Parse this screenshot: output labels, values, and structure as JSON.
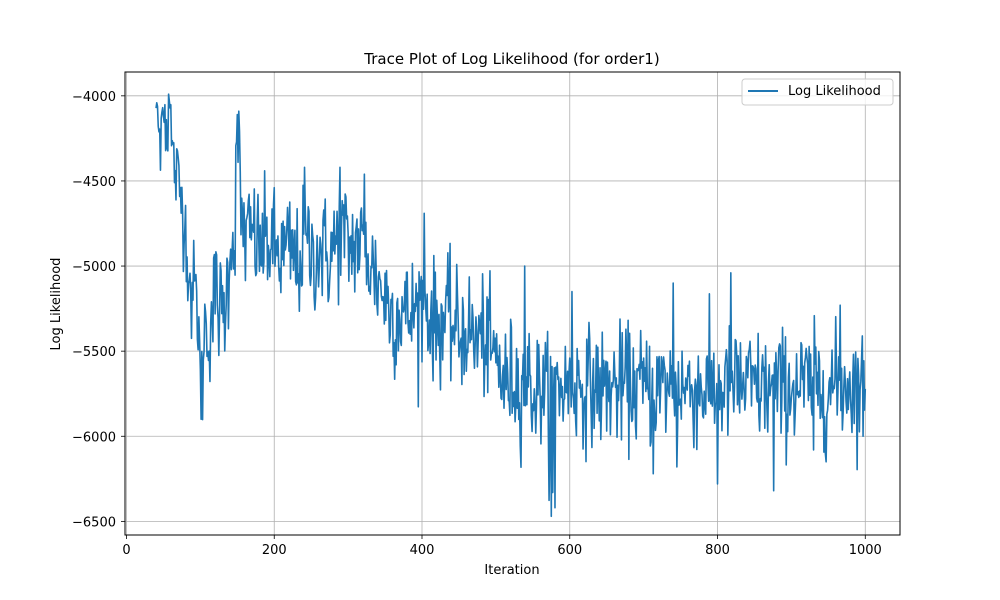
{
  "chart_data": {
    "type": "line",
    "title": "Trace Plot of Log Likelihood (for order1)",
    "xlabel": "Iteration",
    "ylabel": "Log Likelihood",
    "xlim": [
      -2,
      1047
    ],
    "ylim": [
      -6580,
      -3860
    ],
    "xticks": [
      0,
      200,
      400,
      600,
      800,
      1000
    ],
    "yticks": [
      -6500,
      -6000,
      -5500,
      -5000,
      -4500,
      -4000
    ],
    "xtick_labels": [
      "0",
      "200",
      "400",
      "600",
      "800",
      "1000"
    ],
    "ytick_labels": [
      "−6500",
      "−6000",
      "−5500",
      "−5000",
      "−4500",
      "−4000"
    ],
    "grid": true,
    "legend": {
      "position": "top-right"
    },
    "series": [
      {
        "name": "Log Likelihood",
        "color": "#1f77b4",
        "x_start": 40,
        "x_end": 1000,
        "keypoints": [
          [
            40,
            -4030
          ],
          [
            45,
            -4250
          ],
          [
            50,
            -4100
          ],
          [
            55,
            -4200
          ],
          [
            58,
            -4000
          ],
          [
            62,
            -4350
          ],
          [
            68,
            -4480
          ],
          [
            72,
            -4550
          ],
          [
            78,
            -4700
          ],
          [
            82,
            -4900
          ],
          [
            88,
            -5200
          ],
          [
            92,
            -5100
          ],
          [
            98,
            -5350
          ],
          [
            101,
            -5900
          ],
          [
            105,
            -5350
          ],
          [
            110,
            -5400
          ],
          [
            115,
            -5300
          ],
          [
            120,
            -5150
          ],
          [
            126,
            -5250
          ],
          [
            131,
            -5300
          ],
          [
            137,
            -5100
          ],
          [
            141,
            -4800
          ],
          [
            146,
            -4900
          ],
          [
            150,
            -4110
          ],
          [
            155,
            -4700
          ],
          [
            162,
            -4850
          ],
          [
            170,
            -4800
          ],
          [
            180,
            -4900
          ],
          [
            190,
            -4850
          ],
          [
            200,
            -4900
          ],
          [
            210,
            -4950
          ],
          [
            220,
            -4900
          ],
          [
            232,
            -5000
          ],
          [
            242,
            -4850
          ],
          [
            252,
            -4950
          ],
          [
            262,
            -4900
          ],
          [
            275,
            -4950
          ],
          [
            285,
            -4850
          ],
          [
            293,
            -4800
          ],
          [
            302,
            -4900
          ],
          [
            312,
            -4850
          ],
          [
            322,
            -4900
          ],
          [
            332,
            -5000
          ],
          [
            342,
            -5100
          ],
          [
            352,
            -5200
          ],
          [
            362,
            -5300
          ],
          [
            372,
            -5250
          ],
          [
            382,
            -5300
          ],
          [
            392,
            -5250
          ],
          [
            402,
            -5200
          ],
          [
            412,
            -5300
          ],
          [
            422,
            -5350
          ],
          [
            432,
            -5300
          ],
          [
            442,
            -5350
          ],
          [
            452,
            -5400
          ],
          [
            462,
            -5350
          ],
          [
            472,
            -5450
          ],
          [
            482,
            -5400
          ],
          [
            492,
            -5500
          ],
          [
            502,
            -5550
          ],
          [
            512,
            -5700
          ],
          [
            522,
            -5650
          ],
          [
            532,
            -5700
          ],
          [
            542,
            -5650
          ],
          [
            552,
            -5750
          ],
          [
            562,
            -5700
          ],
          [
            572,
            -5800
          ],
          [
            582,
            -5700
          ],
          [
            600,
            -5700
          ],
          [
            620,
            -5700
          ],
          [
            650,
            -5720
          ],
          [
            680,
            -5700
          ],
          [
            710,
            -5720
          ],
          [
            740,
            -5700
          ],
          [
            770,
            -5720
          ],
          [
            800,
            -5720
          ],
          [
            830,
            -5700
          ],
          [
            860,
            -5720
          ],
          [
            890,
            -5720
          ],
          [
            920,
            -5700
          ],
          [
            950,
            -5720
          ],
          [
            980,
            -5680
          ],
          [
            1000,
            -5750
          ]
        ],
        "noise_sd": 170,
        "extremes": [
          [
            150,
            -4110
          ],
          [
            101,
            -5900
          ],
          [
            575,
            -6470
          ],
          [
            577,
            -6330
          ],
          [
            580,
            -6420
          ],
          [
            713,
            -6220
          ],
          [
            800,
            -6280
          ],
          [
            876,
            -6320
          ],
          [
            818,
            -5040
          ],
          [
            740,
            -5100
          ],
          [
            289,
            -4420
          ],
          [
            403,
            -4690
          ],
          [
            539,
            -5000
          ],
          [
            603,
            -5150
          ],
          [
            966,
            -5230
          ],
          [
            57,
            -3990
          ],
          [
            241,
            -4420
          ],
          [
            322,
            -4460
          ],
          [
            745,
            -6180
          ],
          [
            930,
            -6080
          ]
        ]
      }
    ]
  }
}
